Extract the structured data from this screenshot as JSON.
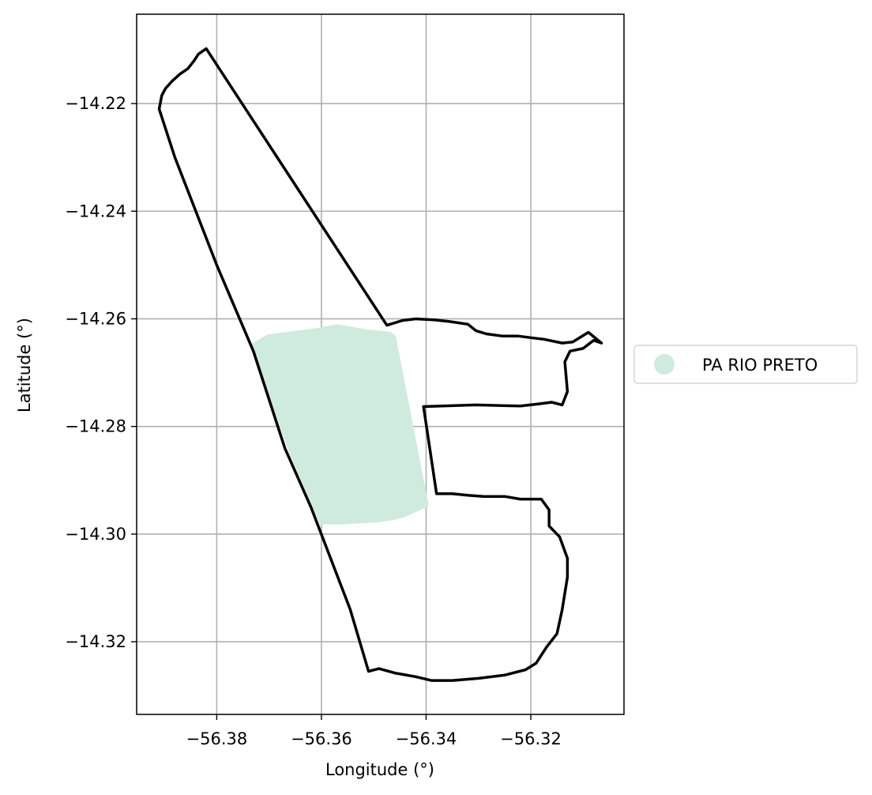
{
  "chart_data": {
    "type": "map",
    "xlabel": "Longitude (°)",
    "ylabel": "Latitude (°)",
    "xlim": [
      -56.3953,
      -56.3022
    ],
    "ylim": [
      -14.3335,
      -14.2034
    ],
    "xticks": [
      -56.38,
      -56.36,
      -56.34,
      -56.32
    ],
    "xtick_labels": [
      "−56.38",
      "−56.36",
      "−56.34",
      "−56.32"
    ],
    "yticks": [
      -14.22,
      -14.24,
      -14.26,
      -14.28,
      -14.3,
      -14.32
    ],
    "ytick_labels": [
      "−14.22",
      "−14.24",
      "−14.26",
      "−14.28",
      "−14.30",
      "−14.32"
    ],
    "grid": true,
    "legend": {
      "placement": "center-right outside",
      "entries": [
        {
          "label": "PA RIO PRETO",
          "color": "#cfebdd",
          "marker": "circle"
        }
      ]
    },
    "layers": [
      {
        "name": "PA RIO PRETO",
        "kind": "filled-polygon",
        "color": "#cfebdd",
        "coordinates": [
          [
            -56.3735,
            -14.2647
          ],
          [
            -56.3703,
            -14.2629
          ],
          [
            -56.3606,
            -14.2617
          ],
          [
            -56.357,
            -14.261
          ],
          [
            -56.351,
            -14.262
          ],
          [
            -56.3468,
            -14.2624
          ],
          [
            -56.3458,
            -14.2632
          ],
          [
            -56.3395,
            -14.2948
          ],
          [
            -56.344,
            -14.2968
          ],
          [
            -56.3458,
            -14.2973
          ],
          [
            -56.349,
            -14.2978
          ],
          [
            -56.356,
            -14.2982
          ],
          [
            -56.3603,
            -14.2982
          ],
          [
            -56.3661,
            -14.285
          ]
        ]
      },
      {
        "name": "boundary",
        "kind": "outline",
        "color": "#000000",
        "coordinates": [
          [
            -56.382,
            -14.2098
          ],
          [
            -56.3835,
            -14.2108
          ],
          [
            -56.3843,
            -14.212
          ],
          [
            -56.3855,
            -14.2135
          ],
          [
            -56.387,
            -14.2145
          ],
          [
            -56.3885,
            -14.2158
          ],
          [
            -56.3898,
            -14.2172
          ],
          [
            -56.3905,
            -14.2185
          ],
          [
            -56.391,
            -14.221
          ],
          [
            -56.388,
            -14.23
          ],
          [
            -56.38,
            -14.25
          ],
          [
            -56.373,
            -14.266
          ],
          [
            -56.367,
            -14.284
          ],
          [
            -56.362,
            -14.295
          ],
          [
            -56.3545,
            -14.314
          ],
          [
            -56.351,
            -14.3255
          ],
          [
            -56.349,
            -14.325
          ],
          [
            -56.346,
            -14.3258
          ],
          [
            -56.342,
            -14.3265
          ],
          [
            -56.339,
            -14.3272
          ],
          [
            -56.335,
            -14.3272
          ],
          [
            -56.33,
            -14.3268
          ],
          [
            -56.325,
            -14.3262
          ],
          [
            -56.321,
            -14.3252
          ],
          [
            -56.319,
            -14.324
          ],
          [
            -56.317,
            -14.321
          ],
          [
            -56.315,
            -14.3185
          ],
          [
            -56.314,
            -14.314
          ],
          [
            -56.313,
            -14.308
          ],
          [
            -56.313,
            -14.3045
          ],
          [
            -56.3145,
            -14.3005
          ],
          [
            -56.3165,
            -14.2985
          ],
          [
            -56.3165,
            -14.2955
          ],
          [
            -56.318,
            -14.2935
          ],
          [
            -56.322,
            -14.2935
          ],
          [
            -56.325,
            -14.293
          ],
          [
            -56.329,
            -14.293
          ],
          [
            -56.332,
            -14.2928
          ],
          [
            -56.335,
            -14.2925
          ],
          [
            -56.338,
            -14.2925
          ],
          [
            -56.3405,
            -14.2763
          ],
          [
            -56.3305,
            -14.276
          ],
          [
            -56.322,
            -14.2762
          ],
          [
            -56.3185,
            -14.2758
          ],
          [
            -56.316,
            -14.2755
          ],
          [
            -56.314,
            -14.276
          ],
          [
            -56.313,
            -14.2735
          ],
          [
            -56.3135,
            -14.268
          ],
          [
            -56.3125,
            -14.266
          ],
          [
            -56.31,
            -14.2655
          ],
          [
            -56.308,
            -14.264
          ],
          [
            -56.3065,
            -14.2645
          ],
          [
            -56.309,
            -14.2625
          ],
          [
            -56.312,
            -14.2643
          ],
          [
            -56.314,
            -14.2645
          ],
          [
            -56.3175,
            -14.2638
          ],
          [
            -56.32,
            -14.2635
          ],
          [
            -56.3225,
            -14.2632
          ],
          [
            -56.3255,
            -14.2632
          ],
          [
            -56.3285,
            -14.2628
          ],
          [
            -56.3305,
            -14.2622
          ],
          [
            -56.332,
            -14.261
          ],
          [
            -56.3355,
            -14.2605
          ],
          [
            -56.3385,
            -14.2602
          ],
          [
            -56.342,
            -14.26
          ],
          [
            -56.3445,
            -14.2603
          ],
          [
            -56.3475,
            -14.2612
          ],
          [
            -56.382,
            -14.2098
          ]
        ]
      }
    ]
  }
}
